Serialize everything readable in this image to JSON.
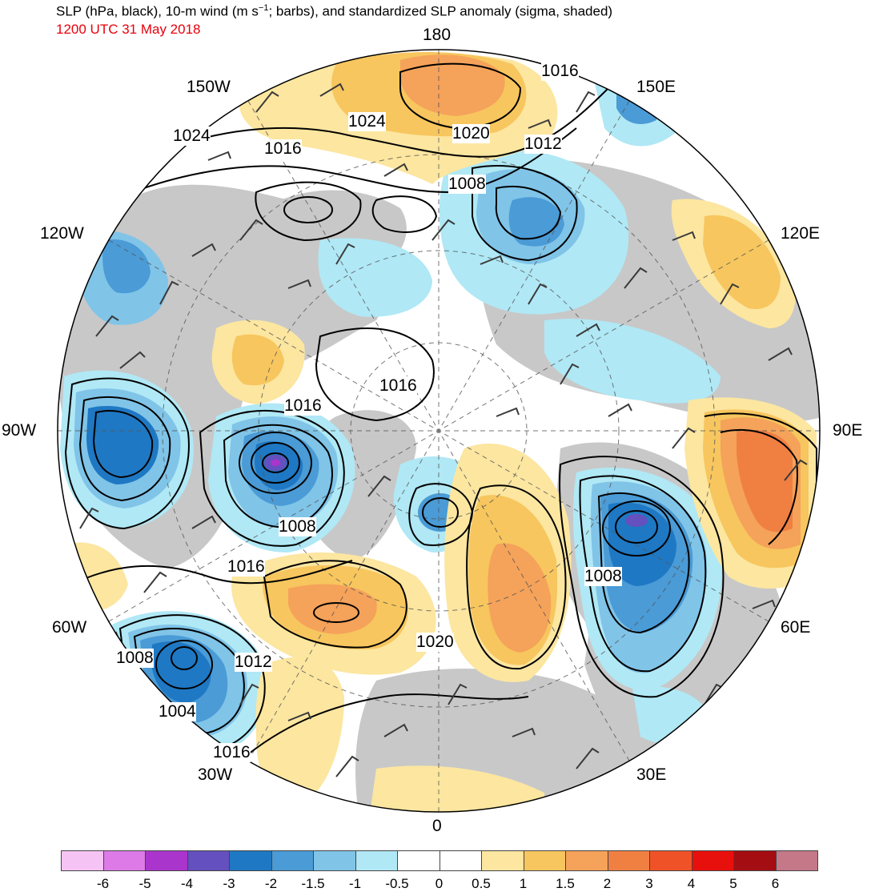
{
  "header": {
    "title_a": "SLP (hPa, black), 10-m wind (m s",
    "title_sup": "−1",
    "title_b": "; barbs), and standardized SLP anomaly (sigma, shaded)",
    "valid_time": "1200 UTC 31 May 2018"
  },
  "map": {
    "projection": "north-polar-stereographic",
    "center_lon_at_bottom": "0",
    "longitude_labels": {
      "top": "180",
      "bottom": "0",
      "left": "90W",
      "right": "90E",
      "upper_left_150": "150W",
      "upper_left_120": "120W",
      "lower_left_60": "60W",
      "lower_left_30": "30W",
      "upper_right_150": "150E",
      "upper_right_120": "120E",
      "lower_right_60": "60E",
      "lower_right_30": "30E"
    },
    "isobar_labels": [
      "1016",
      "1024",
      "1020",
      "1012",
      "1024",
      "1016",
      "1008",
      "1016",
      "1016",
      "1008",
      "1016",
      "1008",
      "1020",
      "1012",
      "1008",
      "1004",
      "1016"
    ],
    "colors": {
      "land": "#c8c8c8",
      "ocean": "#ffffff",
      "contour": "#000000",
      "barb": "#3a3a3a"
    }
  },
  "colorbar": {
    "labels": [
      "-6",
      "-5",
      "-4",
      "-3",
      "-2",
      "-1.5",
      "-1",
      "-0.5",
      "0",
      "0.5",
      "1",
      "1.5",
      "2",
      "3",
      "4",
      "5",
      "6"
    ],
    "colors": [
      "#f6c4f4",
      "#dd7ae8",
      "#aa35cc",
      "#6450be",
      "#1f78c3",
      "#4a9bd6",
      "#80c4e8",
      "#b0e8f5",
      "#ffffff",
      "#ffffff",
      "#fce6a0",
      "#f7c65e",
      "#f5a25a",
      "#f07f42",
      "#f05228",
      "#e8100c",
      "#a40e12",
      "#c47888"
    ]
  }
}
